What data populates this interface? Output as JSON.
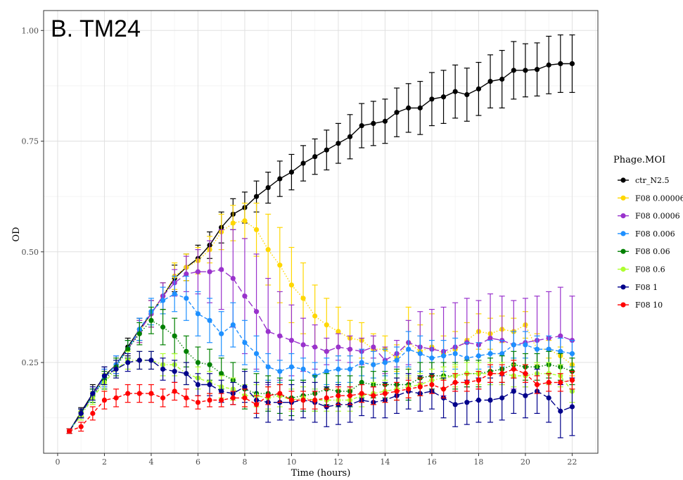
{
  "chart_data": {
    "type": "line",
    "title": "B. TM24",
    "xlabel": "Time (hours)",
    "ylabel": "OD",
    "xlim": [
      -0.6,
      23.1
    ],
    "ylim": [
      0.045,
      1.045
    ],
    "xticks": [
      "0",
      "2",
      "4",
      "6",
      "8",
      "10",
      "12",
      "14",
      "16",
      "18",
      "20",
      "22"
    ],
    "yticks": [
      "0.25",
      "0.50",
      "0.75",
      "1.00"
    ],
    "grid": true,
    "legend_title": "Phage.MOI",
    "legend_position": "right",
    "x": [
      0.5,
      1,
      1.5,
      2,
      2.5,
      3,
      3.5,
      4,
      4.5,
      5,
      5.5,
      6,
      6.5,
      7,
      7.5,
      8,
      8.5,
      9,
      9.5,
      10,
      10.5,
      11,
      11.5,
      12,
      12.5,
      13,
      13.5,
      14,
      14.5,
      15,
      15.5,
      16,
      16.5,
      17,
      17.5,
      18,
      18.5,
      19,
      19.5,
      20,
      20.5,
      21,
      21.5,
      22
    ],
    "series": [
      {
        "name": "ctr_N2.5",
        "color": "#000000",
        "dash": "solid",
        "values": [
          0.095,
          0.138,
          0.18,
          0.22,
          0.245,
          0.285,
          0.325,
          0.36,
          0.4,
          0.44,
          0.465,
          0.485,
          0.515,
          0.555,
          0.585,
          0.6,
          0.625,
          0.645,
          0.665,
          0.68,
          0.7,
          0.715,
          0.73,
          0.745,
          0.76,
          0.785,
          0.79,
          0.795,
          0.815,
          0.825,
          0.825,
          0.845,
          0.85,
          0.862,
          0.855,
          0.868,
          0.885,
          0.89,
          0.91,
          0.91,
          0.912,
          0.922,
          0.925,
          0.925
        ],
        "errors": [
          0.005,
          0.01,
          0.02,
          0.02,
          0.02,
          0.02,
          0.025,
          0.03,
          0.03,
          0.03,
          0.03,
          0.03,
          0.03,
          0.035,
          0.035,
          0.035,
          0.035,
          0.035,
          0.04,
          0.04,
          0.04,
          0.04,
          0.045,
          0.045,
          0.05,
          0.05,
          0.05,
          0.05,
          0.055,
          0.055,
          0.06,
          0.06,
          0.06,
          0.06,
          0.06,
          0.06,
          0.06,
          0.065,
          0.065,
          0.06,
          0.06,
          0.065,
          0.065,
          0.065
        ]
      },
      {
        "name": "F08 0.00006",
        "color": "#FFD700",
        "dash": "dotted",
        "values": [
          0.095,
          0.135,
          0.175,
          0.215,
          0.245,
          0.28,
          0.32,
          0.36,
          0.4,
          0.445,
          0.465,
          0.48,
          0.505,
          0.545,
          0.565,
          0.57,
          0.55,
          0.505,
          0.47,
          0.425,
          0.395,
          0.355,
          0.335,
          0.32,
          0.305,
          0.3,
          0.28,
          0.28,
          0.26,
          0.295,
          0.275,
          0.285,
          0.27,
          0.28,
          0.3,
          0.32,
          0.315,
          0.325,
          0.32,
          0.335,
          0.28,
          0.28,
          0.265,
          0.245
        ],
        "errors": [
          0.005,
          0.01,
          0.015,
          0.02,
          0.02,
          0.02,
          0.025,
          0.03,
          0.03,
          0.03,
          0.03,
          0.03,
          0.03,
          0.04,
          0.04,
          0.04,
          0.06,
          0.08,
          0.085,
          0.085,
          0.08,
          0.07,
          0.06,
          0.055,
          0.04,
          0.04,
          0.035,
          0.03,
          0.03,
          0.08,
          0.06,
          0.075,
          0.04,
          0.04,
          0.04,
          0.04,
          0.035,
          0.03,
          0.03,
          0.03,
          0.035,
          0.02,
          0.02,
          0.025
        ]
      },
      {
        "name": "F08 0.0006",
        "color": "#9932CC",
        "dash": "longdash",
        "values": [
          0.095,
          0.135,
          0.175,
          0.215,
          0.245,
          0.28,
          0.32,
          0.36,
          0.4,
          0.43,
          0.45,
          0.455,
          0.455,
          0.46,
          0.44,
          0.4,
          0.365,
          0.32,
          0.31,
          0.3,
          0.29,
          0.285,
          0.275,
          0.285,
          0.28,
          0.275,
          0.285,
          0.255,
          0.27,
          0.295,
          0.285,
          0.28,
          0.275,
          0.285,
          0.295,
          0.29,
          0.305,
          0.3,
          0.29,
          0.295,
          0.3,
          0.305,
          0.31,
          0.3
        ],
        "errors": [
          0.005,
          0.01,
          0.015,
          0.02,
          0.02,
          0.02,
          0.025,
          0.03,
          0.03,
          0.03,
          0.04,
          0.05,
          0.07,
          0.09,
          0.11,
          0.13,
          0.13,
          0.12,
          0.1,
          0.08,
          0.06,
          0.05,
          0.03,
          0.03,
          0.03,
          0.03,
          0.025,
          0.03,
          0.03,
          0.05,
          0.08,
          0.09,
          0.1,
          0.1,
          0.1,
          0.1,
          0.1,
          0.1,
          0.1,
          0.1,
          0.1,
          0.105,
          0.11,
          0.1
        ]
      },
      {
        "name": "F08 0.006",
        "color": "#1E90FF",
        "dash": "dashed",
        "values": [
          0.095,
          0.135,
          0.175,
          0.215,
          0.245,
          0.28,
          0.325,
          0.365,
          0.39,
          0.405,
          0.395,
          0.36,
          0.345,
          0.315,
          0.335,
          0.295,
          0.27,
          0.24,
          0.23,
          0.24,
          0.235,
          0.22,
          0.23,
          0.235,
          0.235,
          0.25,
          0.245,
          0.25,
          0.255,
          0.28,
          0.27,
          0.26,
          0.265,
          0.27,
          0.26,
          0.265,
          0.27,
          0.27,
          0.29,
          0.29,
          0.28,
          0.28,
          0.275,
          0.27
        ],
        "errors": [
          0.005,
          0.01,
          0.015,
          0.02,
          0.02,
          0.02,
          0.025,
          0.03,
          0.03,
          0.04,
          0.05,
          0.05,
          0.05,
          0.05,
          0.05,
          0.05,
          0.04,
          0.03,
          0.025,
          0.03,
          0.025,
          0.03,
          0.03,
          0.03,
          0.03,
          0.03,
          0.03,
          0.03,
          0.03,
          0.04,
          0.04,
          0.04,
          0.035,
          0.035,
          0.035,
          0.03,
          0.03,
          0.03,
          0.03,
          0.03,
          0.03,
          0.03,
          0.03,
          0.03
        ]
      },
      {
        "name": "F08 0.06",
        "color": "#008000",
        "dash": "dotted",
        "values": [
          0.095,
          0.135,
          0.175,
          0.21,
          0.24,
          0.28,
          0.315,
          0.345,
          0.33,
          0.31,
          0.275,
          0.25,
          0.245,
          0.225,
          0.21,
          0.19,
          0.18,
          0.18,
          0.175,
          0.17,
          0.175,
          0.18,
          0.19,
          0.185,
          0.185,
          0.205,
          0.2,
          0.2,
          0.2,
          0.2,
          0.215,
          0.22,
          0.22,
          0.22,
          0.225,
          0.225,
          0.23,
          0.235,
          0.245,
          0.24,
          0.24,
          0.245,
          0.24,
          0.23
        ],
        "errors": [
          0.005,
          0.01,
          0.015,
          0.02,
          0.02,
          0.02,
          0.025,
          0.03,
          0.04,
          0.04,
          0.035,
          0.035,
          0.035,
          0.035,
          0.04,
          0.045,
          0.045,
          0.04,
          0.04,
          0.04,
          0.035,
          0.04,
          0.035,
          0.035,
          0.035,
          0.035,
          0.03,
          0.03,
          0.035,
          0.035,
          0.035,
          0.03,
          0.03,
          0.03,
          0.03,
          0.03,
          0.03,
          0.03,
          0.03,
          0.03,
          0.03,
          0.03,
          0.03,
          0.03
        ]
      },
      {
        "name": "F08 0.6",
        "color": "#ADFF2F",
        "dash": "dotdash",
        "values": [
          0.095,
          0.13,
          0.17,
          0.205,
          0.235,
          0.255,
          0.255,
          0.255,
          0.245,
          0.245,
          0.225,
          0.215,
          0.205,
          0.195,
          0.19,
          0.175,
          0.175,
          0.17,
          0.175,
          0.165,
          0.17,
          0.165,
          0.165,
          0.165,
          0.165,
          0.175,
          0.18,
          0.185,
          0.19,
          0.195,
          0.2,
          0.21,
          0.215,
          0.22,
          0.225,
          0.225,
          0.225,
          0.225,
          0.22,
          0.22,
          0.225,
          0.225,
          0.22,
          0.185
        ],
        "errors": [
          0.005,
          0.01,
          0.015,
          0.02,
          0.02,
          0.02,
          0.02,
          0.02,
          0.025,
          0.025,
          0.025,
          0.025,
          0.025,
          0.025,
          0.025,
          0.025,
          0.025,
          0.025,
          0.025,
          0.025,
          0.025,
          0.025,
          0.025,
          0.025,
          0.025,
          0.025,
          0.025,
          0.025,
          0.025,
          0.025,
          0.025,
          0.025,
          0.025,
          0.025,
          0.025,
          0.025,
          0.025,
          0.025,
          0.025,
          0.025,
          0.025,
          0.025,
          0.025,
          0.025
        ]
      },
      {
        "name": "F08 1",
        "color": "#00008B",
        "dash": "longdash",
        "values": [
          0.095,
          0.135,
          0.18,
          0.22,
          0.235,
          0.25,
          0.255,
          0.255,
          0.235,
          0.23,
          0.225,
          0.2,
          0.2,
          0.185,
          0.18,
          0.195,
          0.165,
          0.16,
          0.16,
          0.16,
          0.165,
          0.16,
          0.15,
          0.155,
          0.155,
          0.165,
          0.16,
          0.165,
          0.175,
          0.185,
          0.18,
          0.185,
          0.17,
          0.155,
          0.16,
          0.165,
          0.165,
          0.17,
          0.185,
          0.175,
          0.185,
          0.17,
          0.14,
          0.15
        ],
        "errors": [
          0.005,
          0.01,
          0.015,
          0.02,
          0.02,
          0.02,
          0.02,
          0.02,
          0.025,
          0.025,
          0.025,
          0.025,
          0.025,
          0.025,
          0.025,
          0.035,
          0.04,
          0.045,
          0.04,
          0.04,
          0.04,
          0.045,
          0.045,
          0.045,
          0.04,
          0.035,
          0.035,
          0.04,
          0.04,
          0.04,
          0.04,
          0.04,
          0.045,
          0.05,
          0.05,
          0.05,
          0.05,
          0.05,
          0.05,
          0.05,
          0.05,
          0.055,
          0.06,
          0.065
        ]
      },
      {
        "name": "F08 10",
        "color": "#FF0000",
        "dash": "dashed",
        "values": [
          0.095,
          0.105,
          0.135,
          0.165,
          0.17,
          0.18,
          0.18,
          0.18,
          0.17,
          0.185,
          0.17,
          0.16,
          0.165,
          0.165,
          0.17,
          0.17,
          0.155,
          0.175,
          0.18,
          0.165,
          0.165,
          0.165,
          0.17,
          0.175,
          0.175,
          0.18,
          0.175,
          0.18,
          0.185,
          0.19,
          0.195,
          0.2,
          0.19,
          0.205,
          0.205,
          0.21,
          0.225,
          0.225,
          0.235,
          0.225,
          0.2,
          0.205,
          0.205,
          0.21
        ],
        "errors": [
          0.005,
          0.01,
          0.015,
          0.02,
          0.02,
          0.02,
          0.02,
          0.02,
          0.02,
          0.02,
          0.02,
          0.015,
          0.015,
          0.015,
          0.015,
          0.02,
          0.02,
          0.02,
          0.02,
          0.02,
          0.02,
          0.02,
          0.02,
          0.02,
          0.02,
          0.02,
          0.02,
          0.02,
          0.02,
          0.02,
          0.02,
          0.02,
          0.02,
          0.02,
          0.02,
          0.02,
          0.02,
          0.02,
          0.02,
          0.02,
          0.02,
          0.02,
          0.02,
          0.02
        ]
      }
    ]
  }
}
